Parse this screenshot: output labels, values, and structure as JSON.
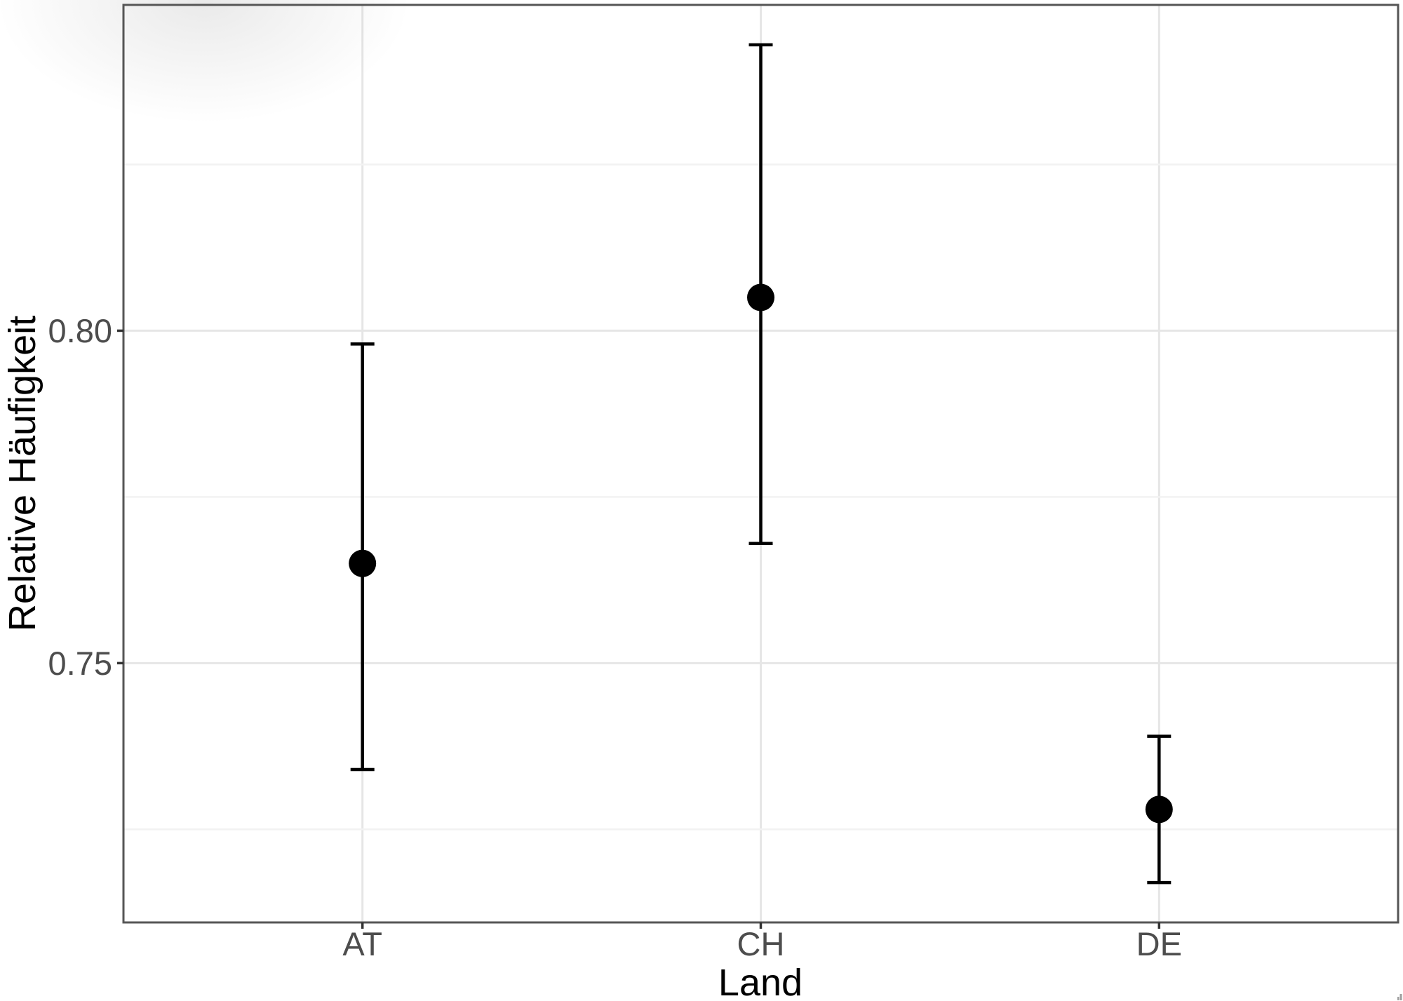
{
  "chart_data": {
    "type": "scatter",
    "subtype": "pointrange-errorbar",
    "title": "",
    "xlabel": "Land",
    "ylabel": "Relative Häufigkeit",
    "categories": [
      "AT",
      "CH",
      "DE"
    ],
    "series": [
      {
        "name": "Relative Häufigkeit",
        "values": [
          0.765,
          0.805,
          0.728
        ],
        "ci_low": [
          0.734,
          0.768,
          0.717
        ],
        "ci_high": [
          0.798,
          0.843,
          0.739
        ]
      }
    ],
    "ylim": [
      0.711,
      0.849
    ],
    "yticks_major": [
      {
        "value": 0.8,
        "label": "0.80"
      },
      {
        "value": 0.75,
        "label": "0.75"
      }
    ],
    "yticks_minor": [
      0.825,
      0.775,
      0.725
    ],
    "grid": "on",
    "legend": "none",
    "style": {
      "point_color": "#000000",
      "error_color": "#000000",
      "grid_major_color": "#e6e6e6",
      "grid_minor_color": "#f2f2f2",
      "panel_border_color": "#565656",
      "tick_color": "#333333",
      "tick_label_color": "#4d4d4d",
      "axis_title_color": "#000000",
      "background": "#ffffff"
    }
  }
}
